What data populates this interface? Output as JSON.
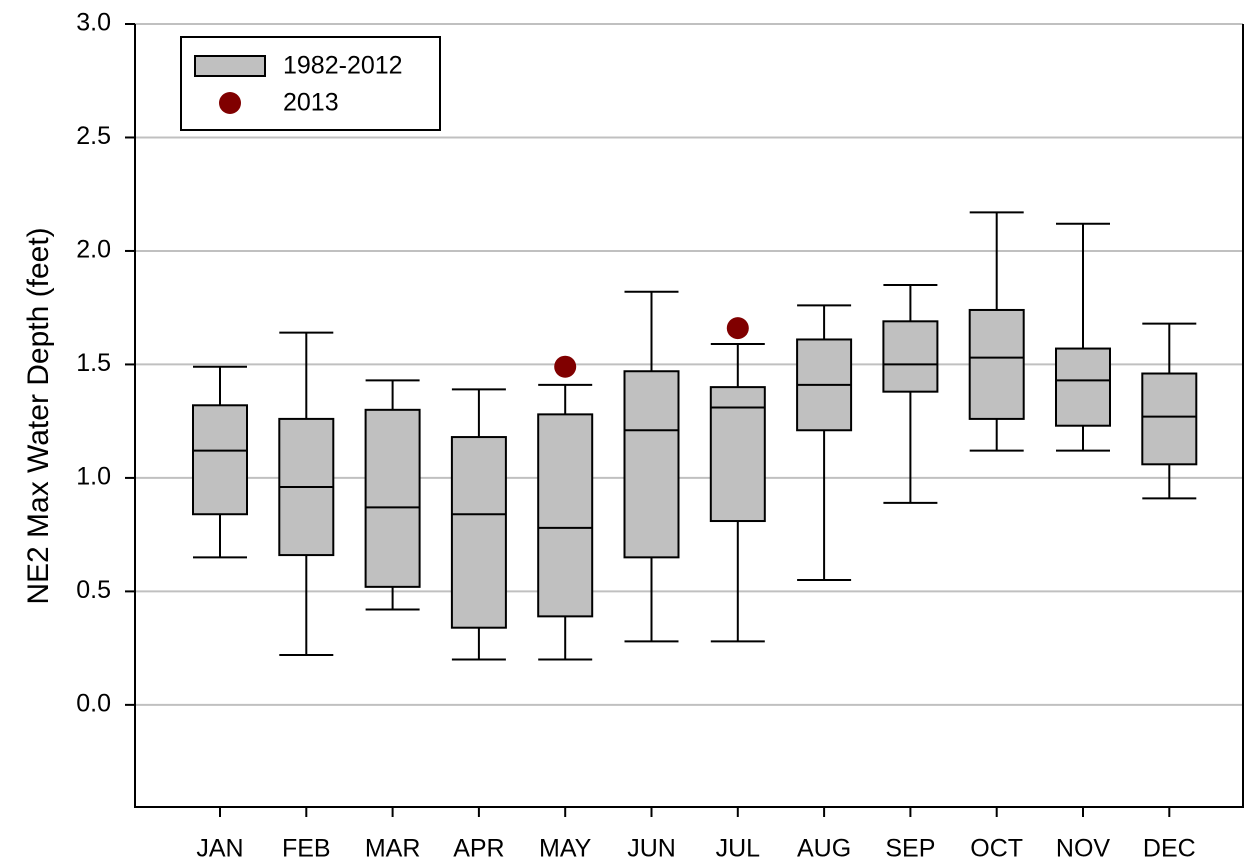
{
  "chart_data": {
    "type": "box",
    "y_label": "NE2 Max Water Depth (feet)",
    "categories": [
      "JAN",
      "FEB",
      "MAR",
      "APR",
      "MAY",
      "JUN",
      "JUL",
      "AUG",
      "SEP",
      "OCT",
      "NOV",
      "DEC"
    ],
    "series": [
      {
        "name": "1982-2012",
        "color": "#c0c0c0",
        "min": [
          0.65,
          0.22,
          0.42,
          0.2,
          0.2,
          0.28,
          0.28,
          0.55,
          0.89,
          1.12,
          1.12,
          0.91
        ],
        "q1": [
          0.84,
          0.66,
          0.52,
          0.34,
          0.39,
          0.65,
          0.81,
          1.21,
          1.38,
          1.26,
          1.23,
          1.06
        ],
        "median": [
          1.12,
          0.96,
          0.87,
          0.84,
          0.78,
          1.21,
          1.31,
          1.41,
          1.5,
          1.53,
          1.43,
          1.27
        ],
        "q3": [
          1.32,
          1.26,
          1.3,
          1.18,
          1.28,
          1.47,
          1.4,
          1.61,
          1.69,
          1.74,
          1.57,
          1.46
        ],
        "max": [
          1.49,
          1.64,
          1.43,
          1.39,
          1.41,
          1.82,
          1.59,
          1.76,
          1.85,
          2.17,
          2.12,
          1.68
        ]
      },
      {
        "name": "2013",
        "color": "#800000",
        "values": [
          null,
          null,
          null,
          null,
          1.49,
          null,
          1.66,
          null,
          null,
          null,
          null,
          null
        ]
      }
    ],
    "ylim": [
      -0.45,
      3.0
    ],
    "yticks": [
      {
        "value": 0.0,
        "label": "0.0"
      },
      0.5,
      {
        "value": 1.0,
        "label": "1.0"
      },
      1.5,
      {
        "value": 2.0,
        "label": "2.0"
      },
      2.5,
      {
        "value": 3.0,
        "label": "3.0"
      }
    ],
    "grid": true,
    "legend": "upper left"
  }
}
